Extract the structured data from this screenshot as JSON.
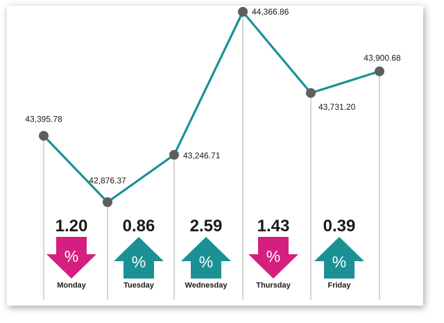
{
  "chart_data": {
    "type": "line",
    "title": "",
    "xlabel": "",
    "ylabel": "",
    "points": [
      {
        "label": "43,395.78",
        "value": 43395.78
      },
      {
        "label": "42,876.37",
        "value": 42876.37
      },
      {
        "label": "43,246.71",
        "value": 43246.71
      },
      {
        "label": "44,366.86",
        "value": 44366.86
      },
      {
        "label": "43,731.20",
        "value": 43731.2
      },
      {
        "label": "43,900.68",
        "value": 43900.68
      }
    ],
    "days": [
      {
        "name": "Monday",
        "change": "1.20",
        "direction": "down"
      },
      {
        "name": "Tuesday",
        "change": "0.86",
        "direction": "up"
      },
      {
        "name": "Wednesday",
        "change": "2.59",
        "direction": "up"
      },
      {
        "name": "Thursday",
        "change": "1.43",
        "direction": "down"
      },
      {
        "name": "Friday",
        "change": "0.39",
        "direction": "up"
      }
    ],
    "percent_symbol": "%",
    "grid": false,
    "colors": {
      "line": "#1b9196",
      "marker": "#5e5e5e",
      "up_arrow": "#1b9196",
      "down_arrow": "#d51f80",
      "divider": "#9a9a9a",
      "text": "#1a1a1a"
    }
  }
}
